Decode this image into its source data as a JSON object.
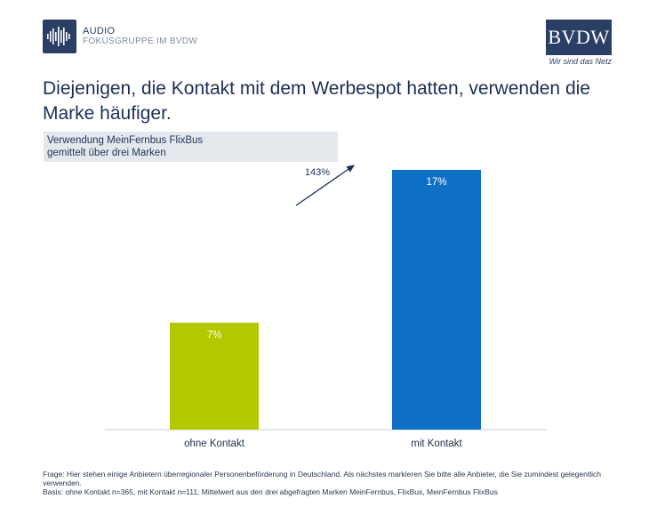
{
  "header": {
    "logo_line1": "AUDIO",
    "logo_line2": "FOKUSGRUPPE IM BVDW",
    "brand": "BVDW",
    "brand_tagline": "Wir sind das Netz"
  },
  "title": "Diejenigen, die Kontakt mit dem Werbespot hatten, verwenden die Marke häufiger.",
  "subtitle_line1": "Verwendung MeinFernbus FlixBus",
  "subtitle_line2": "gemittelt über drei Marken",
  "chart_data": {
    "type": "bar",
    "categories": [
      "ohne Kontakt",
      "mit Kontakt"
    ],
    "values": [
      7,
      17
    ],
    "data_labels": [
      "7%",
      "17%"
    ],
    "colors": [
      "#b4c800",
      "#0e6fc6"
    ],
    "annotation": "143%",
    "ylim": [
      0,
      17
    ],
    "grid": false
  },
  "footer": {
    "line1": "Frage: Hier stehen einige Anbietern überregionaler Personenbeförderung in Deutschland. Als nächstes markieren Sie bitte alle Anbieter, die Sie zumindest gelegentlich verwenden.",
    "line2": "Basis: ohne Kontakt n=365, mit Kontakt n=111; Mittelwert aus den drei abgefragten Marken MeinFernbus, FlixBus, MeinFernbus FlixBus"
  }
}
